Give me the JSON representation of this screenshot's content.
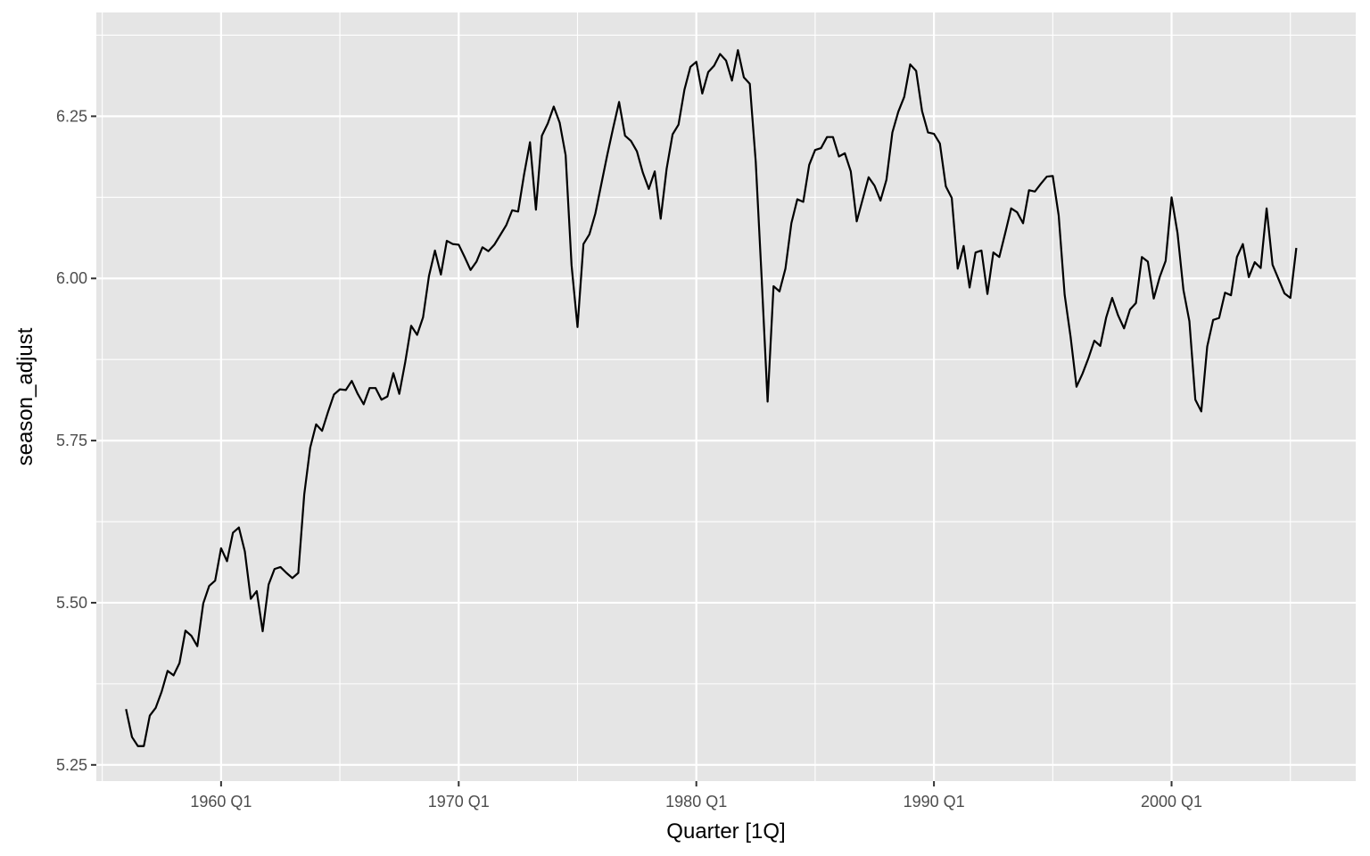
{
  "chart_data": {
    "type": "line",
    "title": "",
    "xlabel": "Quarter [1Q]",
    "ylabel": "season_adjust",
    "x_start": "1956 Q1",
    "x_end": "2005 Q2",
    "xlim": [
      "1954 Q4",
      "2007 Q4"
    ],
    "ylim": [
      5.225,
      6.41
    ],
    "x_major_ticks": [
      "1960 Q1",
      "1970 Q1",
      "1980 Q1",
      "1990 Q1",
      "2000 Q1"
    ],
    "x_minor_ticks": [
      "1955 Q1",
      "1965 Q1",
      "1975 Q1",
      "1985 Q1",
      "1995 Q1",
      "2005 Q1"
    ],
    "y_ticks": [
      "5.25",
      "5.50",
      "5.75",
      "6.00",
      "6.25"
    ],
    "grid": true,
    "legend": "none",
    "colors": {
      "panel": "#e5e5e5",
      "grid": "#ffffff",
      "line": "#000000",
      "tick_text": "#4d4d4d",
      "tick_mark": "#333333"
    },
    "series": [
      {
        "values": [
          5.336,
          5.293,
          5.279,
          5.279,
          5.326,
          5.338,
          5.363,
          5.395,
          5.388,
          5.407,
          5.457,
          5.449,
          5.433,
          5.499,
          5.526,
          5.534,
          5.584,
          5.564,
          5.608,
          5.616,
          5.579,
          5.506,
          5.518,
          5.456,
          5.528,
          5.552,
          5.555,
          5.546,
          5.538,
          5.546,
          5.667,
          5.739,
          5.775,
          5.765,
          5.794,
          5.821,
          5.829,
          5.828,
          5.842,
          5.822,
          5.806,
          5.831,
          5.831,
          5.813,
          5.818,
          5.854,
          5.822,
          5.871,
          5.927,
          5.913,
          5.94,
          6.004,
          6.043,
          6.006,
          6.058,
          6.053,
          6.052,
          6.033,
          6.013,
          6.026,
          6.048,
          6.042,
          6.052,
          6.067,
          6.082,
          6.105,
          6.103,
          6.16,
          6.21,
          6.106,
          6.22,
          6.239,
          6.265,
          6.24,
          6.19,
          6.02,
          5.925,
          6.053,
          6.068,
          6.1,
          6.145,
          6.19,
          6.232,
          6.272,
          6.22,
          6.212,
          6.196,
          6.163,
          6.138,
          6.165,
          6.092,
          6.169,
          6.222,
          6.237,
          6.291,
          6.326,
          6.334,
          6.285,
          6.318,
          6.328,
          6.346,
          6.336,
          6.305,
          6.352,
          6.31,
          6.3,
          6.18,
          6.0,
          5.81,
          5.988,
          5.98,
          6.015,
          6.085,
          6.122,
          6.118,
          6.175,
          6.198,
          6.201,
          6.218,
          6.218,
          6.188,
          6.193,
          6.165,
          6.088,
          6.122,
          6.156,
          6.143,
          6.12,
          6.152,
          6.225,
          6.257,
          6.28,
          6.33,
          6.32,
          6.258,
          6.225,
          6.223,
          6.208,
          6.142,
          6.124,
          6.015,
          6.05,
          5.986,
          6.04,
          6.043,
          5.976,
          6.04,
          6.033,
          6.07,
          6.108,
          6.102,
          6.085,
          6.136,
          6.134,
          6.146,
          6.157,
          6.158,
          6.097,
          5.975,
          5.91,
          5.833,
          5.853,
          5.877,
          5.904,
          5.896,
          5.94,
          5.97,
          5.943,
          5.923,
          5.952,
          5.962,
          6.033,
          6.026,
          5.969,
          6.002,
          6.027,
          6.125,
          6.07,
          5.982,
          5.934,
          5.813,
          5.795,
          5.895,
          5.936,
          5.939,
          5.978,
          5.974,
          6.033,
          6.053,
          6.002,
          6.025,
          6.016,
          6.108,
          6.021,
          5.999,
          5.977,
          5.97,
          6.047
        ]
      }
    ]
  }
}
